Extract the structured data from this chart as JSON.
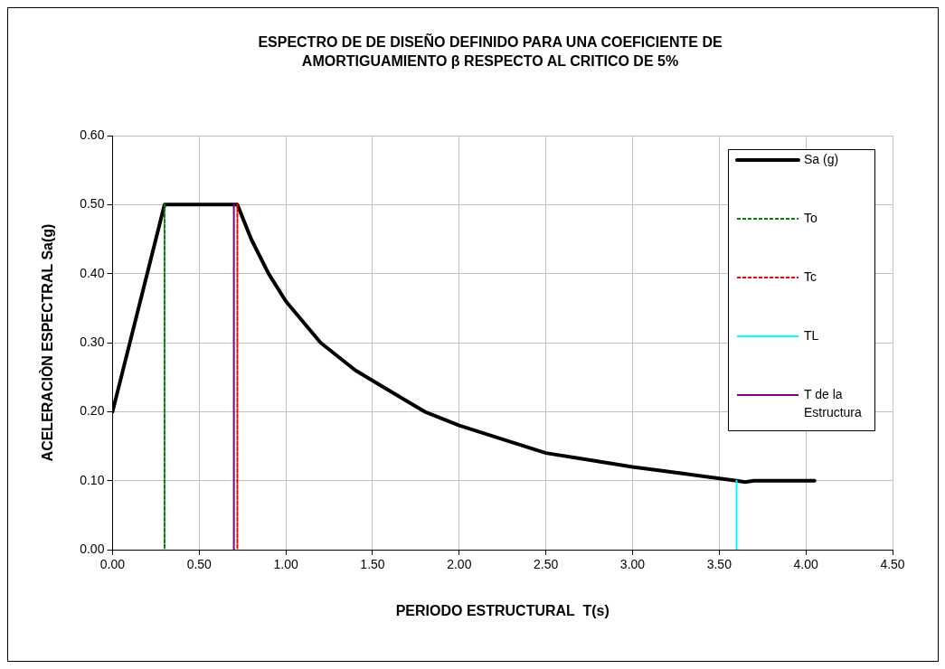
{
  "chart_data": {
    "type": "line",
    "title": "ESPECTRO DE DE DISEÑO DEFINIDO PARA UNA COEFICIENTE DE AMORTIGUAMIENTO β  RESPECTO AL CRITICO DE 5%",
    "xlabel": "PERIODO ESTRUCTURAL  T(s)",
    "ylabel": "ACELERACIÒN ESPECTRAL Sa(g)",
    "xlim": [
      0,
      4.5
    ],
    "xticks": [
      {
        "value": 0,
        "label": "0.00"
      },
      {
        "value": 0.5,
        "label": "0.50"
      },
      {
        "value": 1,
        "label": "1.00"
      },
      {
        "value": 1.5,
        "label": "1.50"
      },
      {
        "value": 2,
        "label": "2.00"
      },
      {
        "value": 2.5,
        "label": "2.50"
      },
      {
        "value": 3,
        "label": "3.00"
      },
      {
        "value": 3.5,
        "label": "3.50"
      },
      {
        "value": 4,
        "label": "4.00"
      },
      {
        "value": 4.5,
        "label": "4.50"
      }
    ],
    "ylim": [
      0,
      0.6
    ],
    "yticks": [
      {
        "value": 0,
        "label": "0.00"
      },
      {
        "value": 0.1,
        "label": "0.10"
      },
      {
        "value": 0.2,
        "label": "0.20"
      },
      {
        "value": 0.3,
        "label": "0.30"
      },
      {
        "value": 0.4,
        "label": "0.40"
      },
      {
        "value": 0.5,
        "label": "0.50"
      },
      {
        "value": 0.6,
        "label": "0.60"
      }
    ],
    "grid": true,
    "legend": "top right",
    "marker": "none",
    "series": [
      {
        "name": "Sa (g)",
        "color": "#000000",
        "line_style": "solid",
        "x": [
          0,
          0.3,
          0.72,
          0.8,
          0.9,
          1.0,
          1.2,
          1.4,
          1.6,
          1.8,
          2.0,
          2.25,
          2.5,
          2.75,
          3.0,
          3.3,
          3.6,
          3.65,
          3.7,
          4.05
        ],
        "values": [
          0.2,
          0.5,
          0.5,
          0.45,
          0.4,
          0.36,
          0.3,
          0.26,
          0.23,
          0.2,
          0.18,
          0.16,
          0.14,
          0.13,
          0.12,
          0.11,
          0.1,
          0.098,
          0.1,
          0.1
        ]
      },
      {
        "name": "To",
        "color": "#008000",
        "line_style": "dashed",
        "x": [
          0.3,
          0.3
        ],
        "values": [
          0,
          0.5
        ]
      },
      {
        "name": "Tc",
        "color": "#ff0000",
        "line_style": "dashed",
        "x": [
          0.72,
          0.72
        ],
        "values": [
          0,
          0.5
        ]
      },
      {
        "name": "TL",
        "color": "#00ffff",
        "line_style": "solid",
        "x": [
          3.6,
          3.6
        ],
        "values": [
          0,
          0.1
        ]
      },
      {
        "name": "T de la Estructura",
        "color": "#800080",
        "line_style": "solid",
        "x": [
          0.7,
          0.7
        ],
        "values": [
          0,
          0.5
        ]
      }
    ]
  }
}
